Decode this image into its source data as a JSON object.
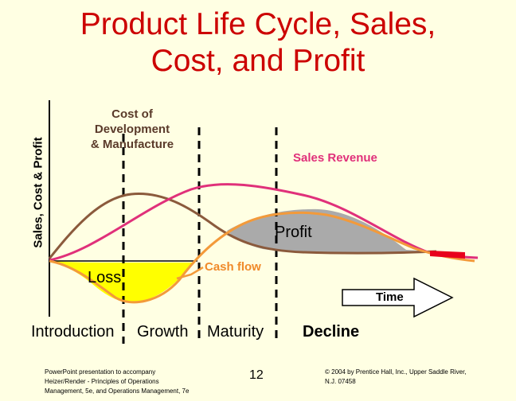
{
  "title": {
    "line1": "Product Life Cycle, Sales,",
    "line2": "Cost, and Profit"
  },
  "y_axis_label": "Sales, Cost & Profit",
  "curves": {
    "cost_label": {
      "line1": "Cost of",
      "line2": "Development",
      "line3": "& Manufacture"
    },
    "sales_label": "Sales Revenue",
    "profit_label": "Profit",
    "loss_label": "Loss",
    "cash_flow_label": "Cash flow"
  },
  "time_label": "Time",
  "phases": [
    "Introduction",
    "Growth",
    "Maturity",
    "Decline"
  ],
  "footer": {
    "left_line1": "PowerPoint presentation to accompany",
    "left_line2": "Heizer/Render - Principles of Operations",
    "left_line3": "Management, 5e, and Operations Management, 7e",
    "page_number": "12",
    "right_line1": "© 2004 by Prentice Hall, Inc., Upper Saddle River,",
    "right_line2": "N.J. 07458"
  },
  "colors": {
    "background": "#ffffe3",
    "title": "#cc0000",
    "cost": "#8b5a3c",
    "sales": "#e0307a",
    "cash_flow": "#f39a3a",
    "profit_fill": "#aaaaaa",
    "loss_fill": "#ffff00"
  }
}
